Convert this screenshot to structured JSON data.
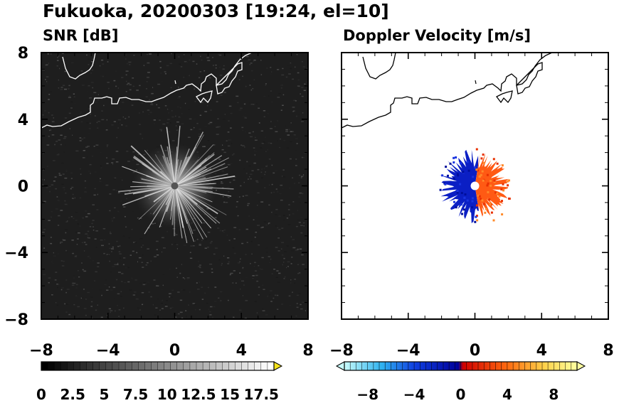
{
  "figure": {
    "title": "Fukuoka, 20200303 [19:24, el=10]"
  },
  "chart_data": [
    {
      "type": "heatmap",
      "title": "SNR [dB]",
      "xlim": [
        -8,
        8
      ],
      "ylim": [
        -8,
        8
      ],
      "xticks": [
        "−8",
        "−4",
        "0",
        "4",
        "8"
      ],
      "yticks": [
        "8",
        "4",
        "0",
        "−4",
        "−8"
      ],
      "colorbar": {
        "min": 0,
        "max": 18.5,
        "labels": [
          "0",
          "2.5",
          "5",
          "7.5",
          "10",
          "12.5",
          "15",
          "17.5"
        ],
        "label_values": [
          0,
          2.5,
          5,
          7.5,
          10,
          12.5,
          15,
          17.5
        ],
        "extend": "max",
        "colors": [
          "#000000",
          "#ffffff"
        ],
        "max_arrow_color": "#f5e31a"
      },
      "echo_radius": 2.5,
      "background": "#1e1e1e"
    },
    {
      "type": "heatmap",
      "title": "Doppler Velocity [m/s]",
      "xlim": [
        -8,
        8
      ],
      "ylim": [
        -8,
        8
      ],
      "xticks": [
        "−8",
        "−4",
        "0",
        "4",
        "8"
      ],
      "yticks": [],
      "colorbar": {
        "min": -10,
        "max": 10,
        "labels": [
          "−8",
          "−4",
          "0",
          "4",
          "8"
        ],
        "label_values": [
          -8,
          -4,
          0,
          4,
          8
        ],
        "extend": "both",
        "colors": [
          "#c8fbfb",
          "#0000c0",
          "#e60000",
          "#ffff80"
        ]
      },
      "echo_radius": 2,
      "negative_color": "#0b1fc4",
      "positive_color": "#ff5a14"
    }
  ]
}
